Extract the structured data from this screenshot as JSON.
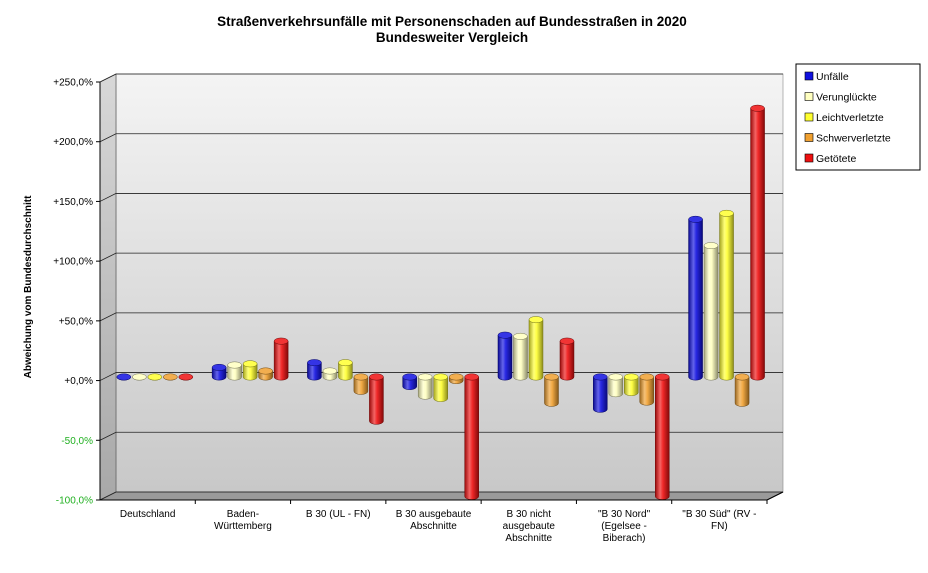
{
  "chart_data": {
    "type": "bar",
    "title": [
      "Straßenverkehrsunfälle mit Personenschaden auf Bundesstraßen in 2020",
      "Bundesweiter Vergleich"
    ],
    "ylabel": "Abweichung vom Bundesdurchschnitt",
    "xlabel": "",
    "ylim": [
      -100,
      250
    ],
    "yticks": [
      250,
      200,
      150,
      100,
      50,
      0,
      -50,
      -100
    ],
    "ytick_labels": [
      "+250,0%",
      "+200,0%",
      "+150,0%",
      "+100,0%",
      "+50,0%",
      "+0,0%",
      "-50,0%",
      "-100,0%"
    ],
    "grid": true,
    "legend_position": "top-right",
    "categories": [
      [
        "Deutschland"
      ],
      [
        "Baden-",
        "Württemberg"
      ],
      [
        "B 30 (UL - FN)"
      ],
      [
        "B 30 ausgebaute",
        "Abschnitte"
      ],
      [
        "B 30 nicht",
        "ausgebaute",
        "Abschnitte"
      ],
      [
        "\"B 30 Nord\"",
        "(Egelsee -",
        "Biberach)"
      ],
      [
        "\"B 30 Süd\" (RV -",
        "FN)"
      ]
    ],
    "series": [
      {
        "name": "Unfälle",
        "color": "#1010e0",
        "values": [
          0,
          8,
          12,
          -8,
          35,
          -27,
          132
        ]
      },
      {
        "name": "Verunglückte",
        "color": "#ffffc0",
        "values": [
          0,
          10,
          5,
          -16,
          34,
          -14,
          110
        ]
      },
      {
        "name": "Leichtverletzte",
        "color": "#ffff30",
        "values": [
          0,
          11,
          12,
          -18,
          48,
          -13,
          137
        ]
      },
      {
        "name": "Schwerverletzte",
        "color": "#f0a030",
        "values": [
          0,
          5,
          -12,
          -3,
          -22,
          -21,
          -22
        ]
      },
      {
        "name": "Getötete",
        "color": "#ee1010",
        "values": [
          0,
          30,
          -37,
          -100,
          30,
          -100,
          225
        ]
      }
    ]
  }
}
